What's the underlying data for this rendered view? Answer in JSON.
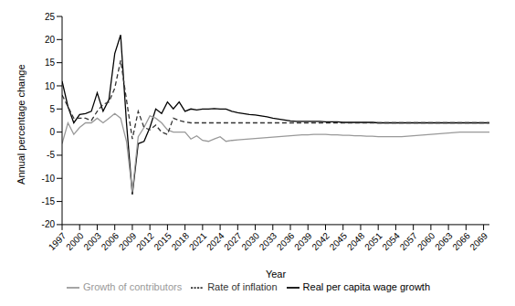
{
  "chart_data": {
    "type": "line",
    "x_label": "Year",
    "y_label": "Annual percentage change",
    "x": [
      1997,
      1998,
      1999,
      2000,
      2001,
      2002,
      2003,
      2004,
      2005,
      2006,
      2007,
      2008,
      2009,
      2010,
      2011,
      2012,
      2013,
      2014,
      2015,
      2016,
      2017,
      2018,
      2019,
      2020,
      2021,
      2022,
      2023,
      2024,
      2025,
      2026,
      2027,
      2028,
      2029,
      2030,
      2031,
      2032,
      2033,
      2034,
      2035,
      2036,
      2037,
      2038,
      2039,
      2040,
      2041,
      2042,
      2043,
      2044,
      2045,
      2046,
      2047,
      2048,
      2049,
      2050,
      2051,
      2052,
      2053,
      2054,
      2055,
      2056,
      2057,
      2058,
      2059,
      2060,
      2061,
      2062,
      2063,
      2064,
      2065,
      2066,
      2067,
      2068,
      2069,
      2070
    ],
    "series": [
      {
        "name": "Real per capita wage growth",
        "color": "#000000",
        "line_style": "solid",
        "values": [
          11,
          5.5,
          2,
          3.8,
          4,
          4.5,
          8.5,
          4.5,
          7,
          17,
          21,
          2,
          -13.5,
          -2.5,
          -2,
          1,
          5,
          4,
          6.5,
          5,
          6.5,
          4.5,
          5,
          4.8,
          5,
          5,
          5.1,
          5,
          5,
          4.5,
          4.2,
          4,
          3.8,
          3.7,
          3.5,
          3.3,
          3,
          2.8,
          2.6,
          2.4,
          2.3,
          2.3,
          2.3,
          2.3,
          2.3,
          2.2,
          2.2,
          2.2,
          2.1,
          2.1,
          2.1,
          2.1,
          2.1,
          2.1,
          2,
          2,
          2,
          2,
          2,
          2,
          2,
          2,
          2,
          2,
          2,
          2,
          2,
          2,
          2,
          2,
          2,
          2,
          2,
          2
        ]
      },
      {
        "name": "Growth of contributors",
        "color": "#999999",
        "line_style": "solid",
        "values": [
          -2.5,
          2,
          -0.5,
          1,
          2,
          2,
          3,
          2,
          3,
          4,
          3,
          -2,
          -13,
          -1,
          1,
          3.5,
          3,
          2,
          0.5,
          0,
          0,
          0,
          -1.5,
          -0.8,
          -1.8,
          -2,
          -1.5,
          -1,
          -2,
          -1.8,
          -1.7,
          -1.6,
          -1.5,
          -1.4,
          -1.3,
          -1.2,
          -1.1,
          -1,
          -0.9,
          -0.8,
          -0.7,
          -0.6,
          -0.6,
          -0.5,
          -0.5,
          -0.5,
          -0.6,
          -0.6,
          -0.7,
          -0.7,
          -0.8,
          -0.8,
          -0.9,
          -0.9,
          -1,
          -1,
          -1,
          -1,
          -1,
          -0.9,
          -0.8,
          -0.7,
          -0.6,
          -0.5,
          -0.4,
          -0.3,
          -0.2,
          -0.1,
          0,
          0,
          0,
          0,
          0,
          0
        ]
      },
      {
        "name": "Rate of inflation",
        "color": "#333333",
        "line_style": "dashed",
        "values": [
          8,
          5.5,
          3,
          3,
          3,
          2.5,
          4.5,
          6,
          6.5,
          9.5,
          15.5,
          7,
          -1.5,
          4.5,
          1,
          0.5,
          1.5,
          0,
          -0.5,
          3,
          2.5,
          2.2,
          2,
          2,
          2,
          2,
          2,
          2,
          2,
          2,
          2,
          2,
          2,
          2,
          2,
          2,
          2,
          2,
          2,
          2,
          2,
          2,
          2,
          2,
          2,
          2,
          2,
          2,
          2,
          2,
          2,
          2,
          2,
          2,
          2,
          2,
          2,
          2,
          2,
          2,
          2,
          2,
          2,
          2,
          2,
          2,
          2,
          2,
          2,
          2,
          2,
          2,
          2,
          2
        ]
      }
    ],
    "xlim": [
      1997,
      2070
    ],
    "xticks": [
      1997,
      2000,
      2003,
      2006,
      2009,
      2012,
      2015,
      2018,
      2021,
      2024,
      2027,
      2030,
      2033,
      2036,
      2039,
      2042,
      2045,
      2048,
      2051,
      2054,
      2057,
      2060,
      2063,
      2066,
      2069
    ],
    "ylim": [
      -20,
      25
    ],
    "yticks": [
      -20,
      -15,
      -10,
      -5,
      0,
      5,
      10,
      15,
      20,
      25
    ],
    "legend": "bottom"
  }
}
